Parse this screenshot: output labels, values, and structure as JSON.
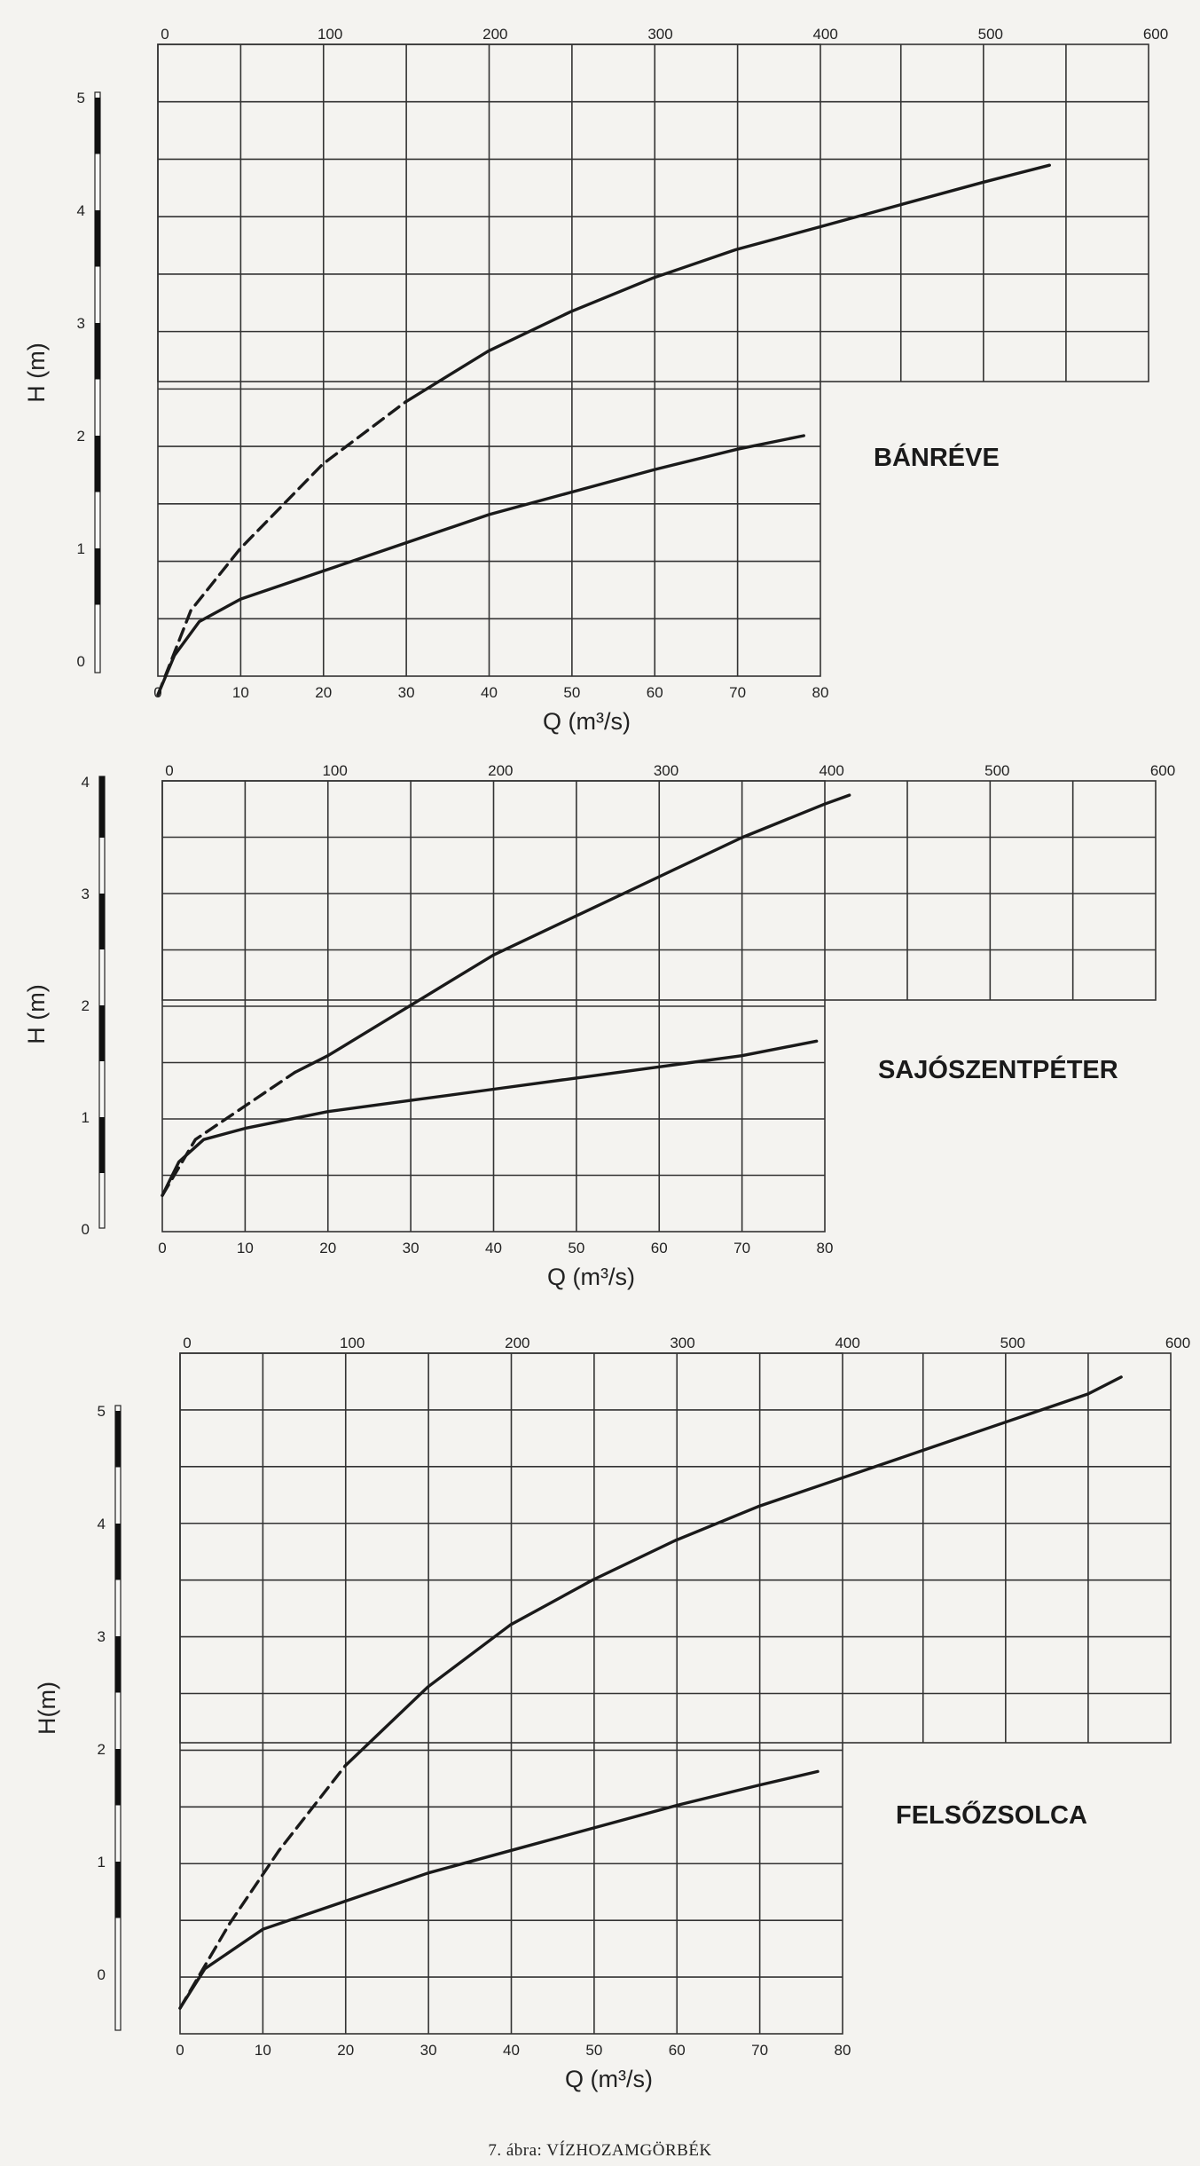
{
  "caption": "7. ábra: VÍZHOZAMGÖRBÉK",
  "chart_data": [
    {
      "type": "line",
      "station": "BÁNRÉVE",
      "xlabel": "Q (m³/s)",
      "ylabel": "H  (m)",
      "x_bottom_ticks": [
        0,
        10,
        20,
        30,
        40,
        50,
        60,
        70,
        80
      ],
      "x_top_ticks": [
        0,
        100,
        200,
        300,
        400,
        500,
        600
      ],
      "x_bottom_range": [
        0,
        80
      ],
      "x_top_range": [
        0,
        600
      ],
      "y_ticks": [
        0,
        1,
        2,
        3,
        4,
        5
      ],
      "y_range": [
        -0.5,
        5
      ],
      "grid": true,
      "series": [
        {
          "axis": "top",
          "dashed_until": 150,
          "x": [
            0,
            20,
            50,
            100,
            150,
            200,
            250,
            300,
            350,
            400,
            450,
            500,
            540
          ],
          "y": [
            -0.3,
            0.45,
            1.0,
            1.75,
            2.3,
            2.75,
            3.1,
            3.4,
            3.65,
            3.85,
            4.05,
            4.25,
            4.4
          ]
        },
        {
          "axis": "bottom",
          "dashed_until": 0,
          "x": [
            0,
            2,
            5,
            10,
            20,
            30,
            40,
            50,
            60,
            70,
            78
          ],
          "y": [
            -0.3,
            0.05,
            0.35,
            0.55,
            0.8,
            1.05,
            1.3,
            1.5,
            1.7,
            1.88,
            2.0
          ]
        }
      ]
    },
    {
      "type": "line",
      "station": "SAJÓSZENTPÉTER",
      "xlabel": "Q (m³/s)",
      "ylabel": "H (m)",
      "x_bottom_ticks": [
        0,
        10,
        20,
        30,
        40,
        50,
        60,
        70,
        80
      ],
      "x_top_ticks": [
        0,
        100,
        200,
        300,
        400,
        500,
        600
      ],
      "x_bottom_range": [
        0,
        80
      ],
      "x_top_range": [
        0,
        600
      ],
      "y_ticks": [
        0,
        1,
        2,
        3,
        4
      ],
      "y_range": [
        -0.1,
        4
      ],
      "grid": true,
      "series": [
        {
          "axis": "top",
          "dashed_until": 80,
          "x": [
            0,
            20,
            50,
            80,
            100,
            150,
            200,
            250,
            300,
            350,
            400,
            415
          ],
          "y": [
            0.3,
            0.8,
            1.1,
            1.4,
            1.55,
            2.0,
            2.45,
            2.8,
            3.15,
            3.5,
            3.8,
            3.88
          ]
        },
        {
          "axis": "bottom",
          "dashed_until": 0,
          "x": [
            0,
            2,
            5,
            10,
            20,
            30,
            40,
            50,
            60,
            70,
            79
          ],
          "y": [
            0.3,
            0.6,
            0.8,
            0.9,
            1.05,
            1.15,
            1.25,
            1.35,
            1.45,
            1.55,
            1.68
          ]
        }
      ]
    },
    {
      "type": "line",
      "station": "FELSŐZSOLCA",
      "xlabel": "Q (m³/s)",
      "ylabel": "H(m)",
      "x_bottom_ticks": [
        0,
        10,
        20,
        30,
        40,
        50,
        60,
        70,
        80
      ],
      "x_top_ticks": [
        0,
        100,
        200,
        300,
        400,
        500,
        600
      ],
      "x_bottom_range": [
        0,
        80
      ],
      "x_top_range": [
        0,
        600
      ],
      "y_ticks": [
        0,
        1,
        2,
        3,
        4,
        5
      ],
      "y_range": [
        -0.5,
        5.5
      ],
      "grid": true,
      "series": [
        {
          "axis": "top",
          "dashed_until": 100,
          "x": [
            0,
            30,
            60,
            100,
            150,
            200,
            250,
            300,
            350,
            400,
            450,
            500,
            550,
            570
          ],
          "y": [
            -0.3,
            0.45,
            1.1,
            1.85,
            2.55,
            3.1,
            3.5,
            3.85,
            4.15,
            4.4,
            4.65,
            4.9,
            5.15,
            5.3
          ]
        },
        {
          "axis": "bottom",
          "dashed_until": 0,
          "x": [
            0,
            3,
            10,
            20,
            30,
            40,
            50,
            60,
            70,
            77
          ],
          "y": [
            -0.3,
            0.05,
            0.4,
            0.65,
            0.9,
            1.1,
            1.3,
            1.5,
            1.68,
            1.8
          ]
        }
      ]
    }
  ]
}
